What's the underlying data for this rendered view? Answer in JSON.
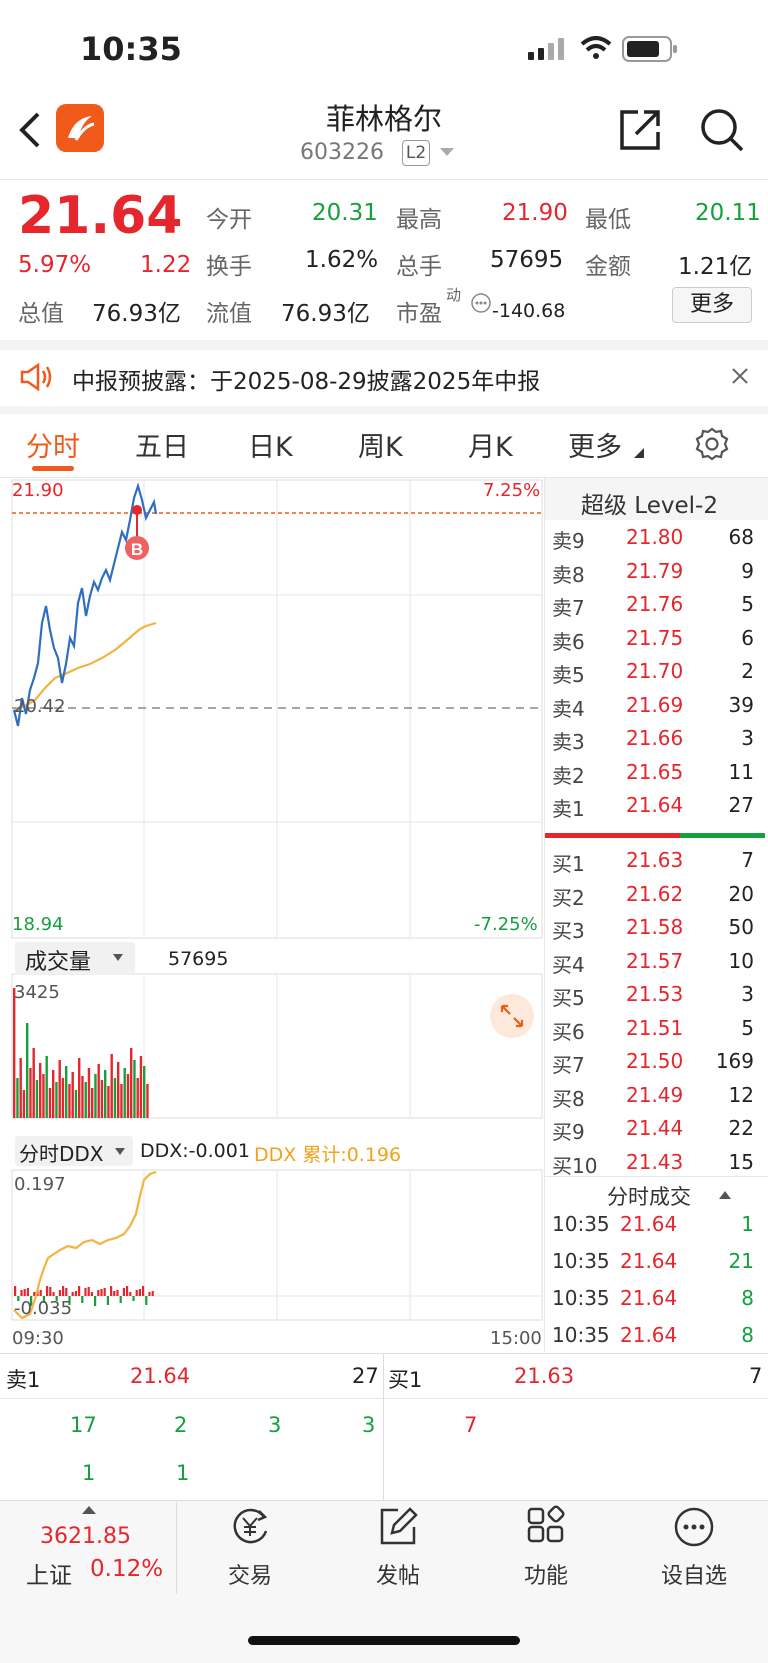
{
  "status_bar": {
    "time": "10:35"
  },
  "header": {
    "title": "菲林格尔",
    "code": "603226",
    "level_badge": "L2",
    "back_icon": "chevron-left-icon",
    "share_icon": "share-icon",
    "search_icon": "search-icon"
  },
  "quote": {
    "price": "21.64",
    "change_pct": "5.97%",
    "change": "1.22",
    "open_label": "今开",
    "open": "20.31",
    "high_label": "最高",
    "high": "21.90",
    "low_label": "最低",
    "low": "20.11",
    "turnover_label": "换手",
    "turnover": "1.62%",
    "volume_label": "总手",
    "volume": "57695",
    "amount_label": "金额",
    "amount": "1.21亿",
    "mktcap_label": "总值",
    "mktcap": "76.93亿",
    "float_label": "流值",
    "float_cap": "76.93亿",
    "pe_label": "市盈",
    "pe_sup": "动",
    "pe": "-140.68",
    "more_button": "更多"
  },
  "notice": {
    "text": "中报预披露：于2025-08-29披露2025年中报"
  },
  "tabs": [
    "分时",
    "五日",
    "日K",
    "周K",
    "月K",
    "更多"
  ],
  "chart": {
    "price_high": "21.90",
    "price_low": "18.94",
    "pct_high": "7.25%",
    "pct_low": "-7.25%",
    "prev_close": "20.42",
    "volume_label": "成交量",
    "volume_value": "57695",
    "volume_max": "3425",
    "ddx_label": "分时DDX",
    "ddx_value": "DDX:-0.001",
    "ddx_cum": "DDX 累计:0.196",
    "ddx_high": "0.197",
    "ddx_low": "-0.035",
    "time_start": "09:30",
    "time_end": "15:00"
  },
  "orderbook": {
    "title": "超级 Level-2",
    "asks": [
      {
        "label": "卖9",
        "price": "21.80",
        "vol": "68"
      },
      {
        "label": "卖8",
        "price": "21.79",
        "vol": "9"
      },
      {
        "label": "卖7",
        "price": "21.76",
        "vol": "5"
      },
      {
        "label": "卖6",
        "price": "21.75",
        "vol": "6"
      },
      {
        "label": "卖5",
        "price": "21.70",
        "vol": "2"
      },
      {
        "label": "卖4",
        "price": "21.69",
        "vol": "39"
      },
      {
        "label": "卖3",
        "price": "21.66",
        "vol": "3"
      },
      {
        "label": "卖2",
        "price": "21.65",
        "vol": "11"
      },
      {
        "label": "卖1",
        "price": "21.64",
        "vol": "27"
      }
    ],
    "bids": [
      {
        "label": "买1",
        "price": "21.63",
        "vol": "7"
      },
      {
        "label": "买2",
        "price": "21.62",
        "vol": "20"
      },
      {
        "label": "买3",
        "price": "21.58",
        "vol": "50"
      },
      {
        "label": "买4",
        "price": "21.57",
        "vol": "10"
      },
      {
        "label": "买5",
        "price": "21.53",
        "vol": "3"
      },
      {
        "label": "买6",
        "price": "21.51",
        "vol": "5"
      },
      {
        "label": "买7",
        "price": "21.50",
        "vol": "169"
      },
      {
        "label": "买8",
        "price": "21.49",
        "vol": "12"
      },
      {
        "label": "买9",
        "price": "21.44",
        "vol": "22"
      },
      {
        "label": "买10",
        "price": "21.43",
        "vol": "15"
      }
    ],
    "ticks_title": "分时成交",
    "ticks": [
      {
        "time": "10:35",
        "price": "21.64",
        "vol": "1"
      },
      {
        "time": "10:35",
        "price": "21.64",
        "vol": "21"
      },
      {
        "time": "10:35",
        "price": "21.64",
        "vol": "8"
      },
      {
        "time": "10:35",
        "price": "21.64",
        "vol": "8"
      }
    ]
  },
  "queue": {
    "sell_label": "卖1",
    "sell_price": "21.64",
    "sell_vol": "27",
    "buy_label": "买1",
    "buy_price": "21.63",
    "buy_vol": "7",
    "sell_orders_row1": [
      "17",
      "2",
      "3",
      "3"
    ],
    "sell_orders_row2": [
      "1",
      "1"
    ],
    "buy_orders": [
      "7"
    ]
  },
  "bottom_nav": {
    "index_value": "3621.85",
    "index_name": "上证",
    "index_change": "0.12%",
    "items": [
      "交易",
      "发帖",
      "功能",
      "设自选"
    ]
  },
  "colors": {
    "up": "#e5262c",
    "down": "#14a03c",
    "accent": "#f05a1a",
    "line": "#2f6fc0",
    "avg": "#f2b340"
  }
}
